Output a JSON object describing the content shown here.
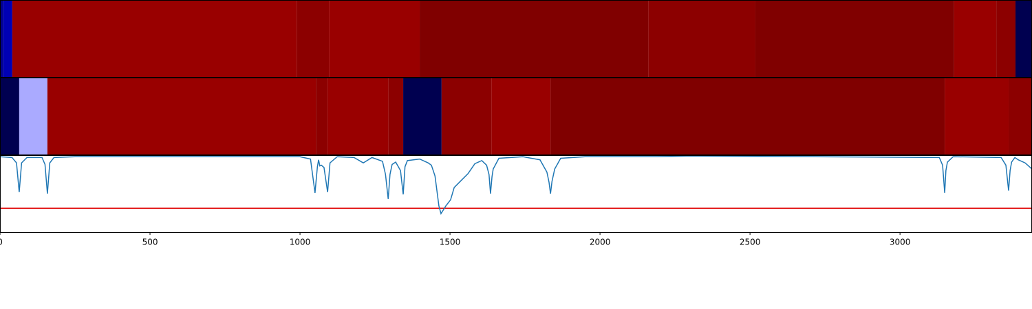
{
  "chart_data": [
    {
      "type": "heatmap",
      "xlim": [
        0,
        3440
      ],
      "x_edges": [
        0,
        11,
        41,
        989,
        1097,
        1399,
        2161,
        2518,
        3180,
        3321,
        3385,
        3440
      ],
      "colors": [
        "#000090",
        "#0000b4",
        "#990000",
        "#8c0000",
        "#990000",
        "#800000",
        "#8c0000",
        "#800000",
        "#990000",
        "#8c0000",
        "#000050"
      ]
    },
    {
      "type": "heatmap",
      "xlim": [
        0,
        3440
      ],
      "x_edges": [
        0,
        64,
        158,
        1053,
        1092,
        1295,
        1344,
        1472,
        1638,
        1835,
        3149,
        3362,
        3440
      ],
      "colors": [
        "#000050",
        "#aaaaff",
        "#990000",
        "#8c0000",
        "#990000",
        "#8c0000",
        "#000050",
        "#8c0000",
        "#990000",
        "#800000",
        "#990000",
        "#8c0000"
      ]
    },
    {
      "type": "line",
      "xlim": [
        0,
        3440
      ],
      "ylim": [
        0,
        1
      ],
      "color": "#1f77b4",
      "xticks": [
        0,
        500,
        1000,
        1500,
        2000,
        2500,
        3000
      ],
      "hline": {
        "value": 0.31,
        "color": "#e00000"
      },
      "x": [
        0,
        40,
        55,
        64,
        72,
        90,
        140,
        150,
        158,
        166,
        180,
        250,
        1000,
        1035,
        1050,
        1058,
        1062,
        1066,
        1071,
        1080,
        1092,
        1100,
        1124,
        1180,
        1211,
        1240,
        1275,
        1285,
        1294,
        1300,
        1307,
        1319,
        1335,
        1344,
        1350,
        1358,
        1399,
        1427,
        1438,
        1450,
        1463,
        1470,
        1486,
        1502,
        1514,
        1537,
        1560,
        1583,
        1606,
        1622,
        1630,
        1635,
        1640,
        1644,
        1663,
        1743,
        1800,
        1823,
        1830,
        1835,
        1840,
        1849,
        1869,
        1950,
        2190,
        2300,
        3131,
        3142,
        3149,
        3153,
        3158,
        3177,
        3337,
        3353,
        3362,
        3367,
        3372,
        3383,
        3394,
        3417,
        3440
      ],
      "values": [
        0.98,
        0.97,
        0.9,
        0.52,
        0.9,
        0.97,
        0.97,
        0.88,
        0.5,
        0.9,
        0.97,
        0.98,
        0.98,
        0.95,
        0.51,
        0.85,
        0.94,
        0.86,
        0.87,
        0.84,
        0.52,
        0.9,
        0.98,
        0.97,
        0.9,
        0.97,
        0.92,
        0.75,
        0.43,
        0.75,
        0.88,
        0.91,
        0.8,
        0.49,
        0.85,
        0.93,
        0.95,
        0.9,
        0.87,
        0.73,
        0.34,
        0.24,
        0.34,
        0.42,
        0.58,
        0.67,
        0.76,
        0.89,
        0.93,
        0.87,
        0.75,
        0.5,
        0.72,
        0.82,
        0.96,
        0.98,
        0.94,
        0.78,
        0.65,
        0.5,
        0.66,
        0.82,
        0.96,
        0.98,
        0.98,
        0.99,
        0.97,
        0.87,
        0.51,
        0.8,
        0.91,
        0.98,
        0.97,
        0.87,
        0.54,
        0.8,
        0.91,
        0.97,
        0.94,
        0.9,
        0.82
      ]
    }
  ]
}
